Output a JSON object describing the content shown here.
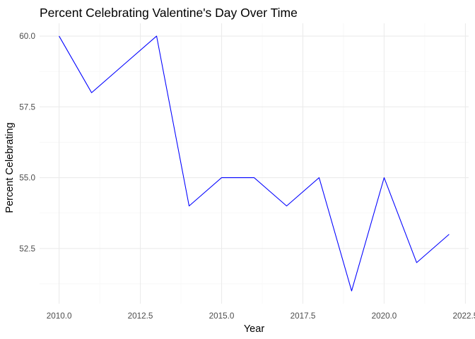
{
  "chart_data": {
    "type": "line",
    "title": "Percent Celebrating Valentine's Day Over Time",
    "xlabel": "Year",
    "ylabel": "Percent Celebrating",
    "x": [
      2010,
      2011,
      2012,
      2013,
      2014,
      2015,
      2016,
      2017,
      2018,
      2019,
      2020,
      2021,
      2022
    ],
    "series": [
      {
        "values": [
          60,
          58,
          59,
          60,
          54,
          55,
          55,
          54,
          55,
          51,
          55,
          52,
          53
        ],
        "color": "#0000ff"
      }
    ],
    "xlim": [
      2009.4,
      2022.6
    ],
    "ylim": [
      50.55,
      60.45
    ],
    "x_ticks": [
      2010,
      2012.5,
      2015,
      2017.5,
      2020,
      2022.5
    ],
    "x_tick_labels": [
      "2010.0",
      "2012.5",
      "2015.0",
      "2017.5",
      "2020.0",
      "2022.5"
    ],
    "y_ticks": [
      52.5,
      55,
      57.5,
      60
    ],
    "y_tick_labels": [
      "52.5",
      "55.0",
      "57.5",
      "60.0"
    ],
    "grid": true,
    "theme": "minimal"
  }
}
